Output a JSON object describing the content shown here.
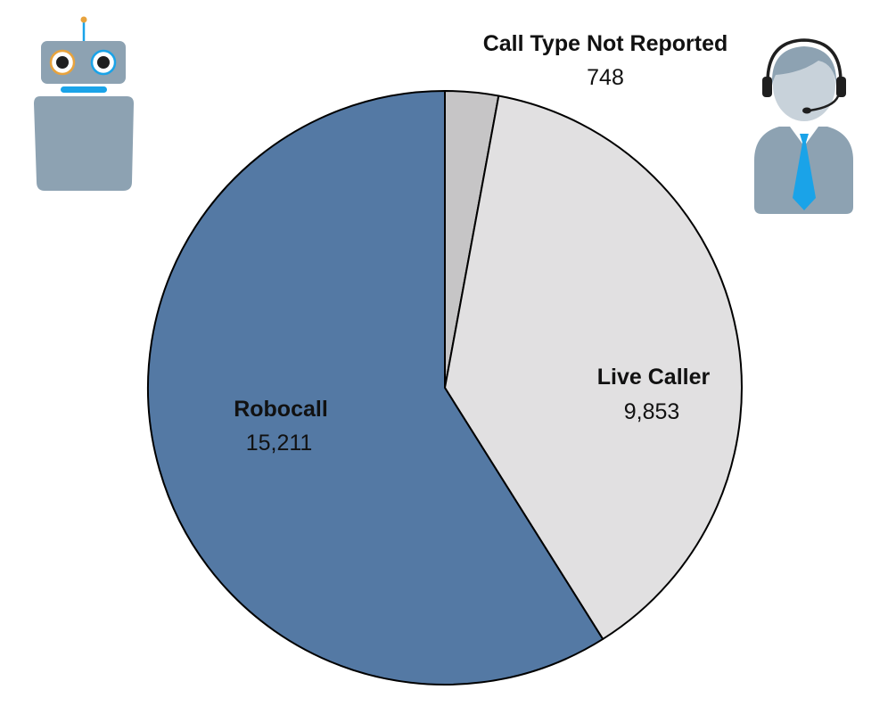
{
  "chart_data": {
    "type": "pie",
    "title": "",
    "slices": [
      {
        "label": "Call Type Not Reported",
        "value": 748,
        "value_text": "748",
        "color": "#c6c5c6"
      },
      {
        "label": "Live Caller",
        "value": 9853,
        "value_text": "9,853",
        "color": "#e1e0e1"
      },
      {
        "label": "Robocall",
        "value": 15211,
        "value_text": "15,211",
        "color": "#5479a4"
      }
    ],
    "start_angle": "12 o'clock",
    "direction": "clockwise",
    "legend": "none",
    "data_labels": "category name and value"
  },
  "icons": {
    "robot": "robot-icon",
    "agent": "call-center-agent-icon",
    "robot_body_color": "#8da2b2",
    "robot_accent_color": "#1aa3e8",
    "robot_eye_ring_color": "#e8a33d",
    "agent_tie_color": "#1aa3e8"
  }
}
